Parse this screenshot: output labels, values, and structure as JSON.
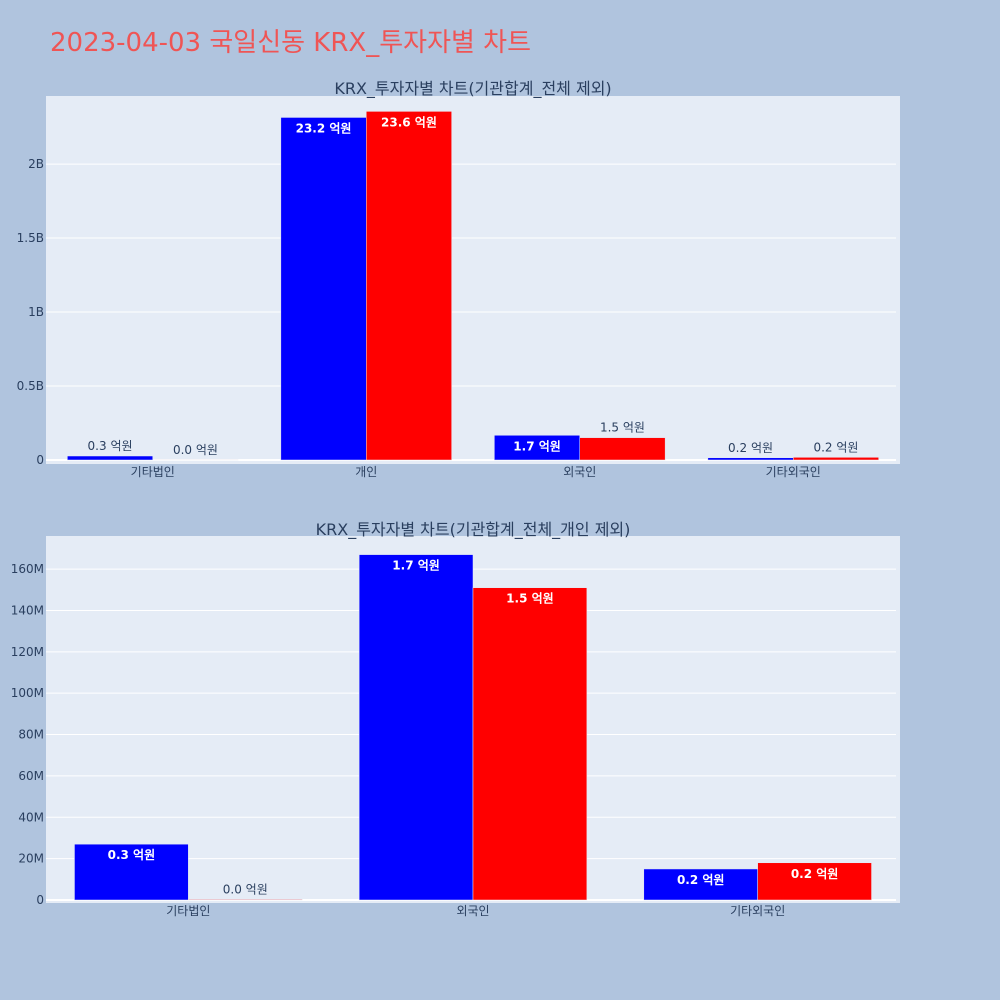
{
  "page_title": "2023-04-03 국일신동 KRX_투자자별 차트",
  "colors": {
    "background": "#b0c4de",
    "plot_bg": "#e5ecf6",
    "gridline": "#ffffff",
    "title": "#ef5555",
    "text": "#2a3f5f",
    "series_buy": "#0000ff",
    "series_sell": "#ff0000"
  },
  "chart_data": [
    {
      "type": "bar",
      "title": "KRX_투자자별 차트(기관합계_전체 제외)",
      "categories": [
        "기타법인",
        "개인",
        "외국인",
        "기타외국인"
      ],
      "ylim": [
        0,
        2460000000
      ],
      "yticks": [
        0,
        500000000,
        1000000000,
        1500000000,
        2000000000
      ],
      "ytick_labels": [
        "0",
        "0.5B",
        "1B",
        "1.5B",
        "2B"
      ],
      "series": [
        {
          "color": "#0000ff",
          "values": [
            27000000,
            2315000000,
            167000000,
            15000000
          ],
          "labels": [
            "0.3 억원",
            "23.2 억원",
            "1.7 억원",
            "0.2 억원"
          ]
        },
        {
          "color": "#ff0000",
          "values": [
            300000,
            2356000000,
            151000000,
            18000000
          ],
          "labels": [
            "0.0 억원",
            "23.6 억원",
            "1.5 억원",
            "0.2 억원"
          ]
        }
      ],
      "grid": true,
      "legend": "none"
    },
    {
      "type": "bar",
      "title": "KRX_투자자별 차트(기관합계_전체_개인 제외)",
      "categories": [
        "기타법인",
        "외국인",
        "기타외국인"
      ],
      "ylim": [
        0,
        176000000
      ],
      "yticks": [
        0,
        20000000,
        40000000,
        60000000,
        80000000,
        100000000,
        120000000,
        140000000,
        160000000
      ],
      "ytick_labels": [
        "0",
        "20M",
        "40M",
        "60M",
        "80M",
        "100M",
        "120M",
        "140M",
        "160M"
      ],
      "series": [
        {
          "color": "#0000ff",
          "values": [
            27000000,
            167000000,
            15000000
          ],
          "labels": [
            "0.3 억원",
            "1.7 억원",
            "0.2 억원"
          ]
        },
        {
          "color": "#ff0000",
          "values": [
            300000,
            151000000,
            18000000
          ],
          "labels": [
            "0.0 억원",
            "1.5 억원",
            "0.2 억원"
          ]
        }
      ],
      "grid": true,
      "legend": "none"
    }
  ]
}
